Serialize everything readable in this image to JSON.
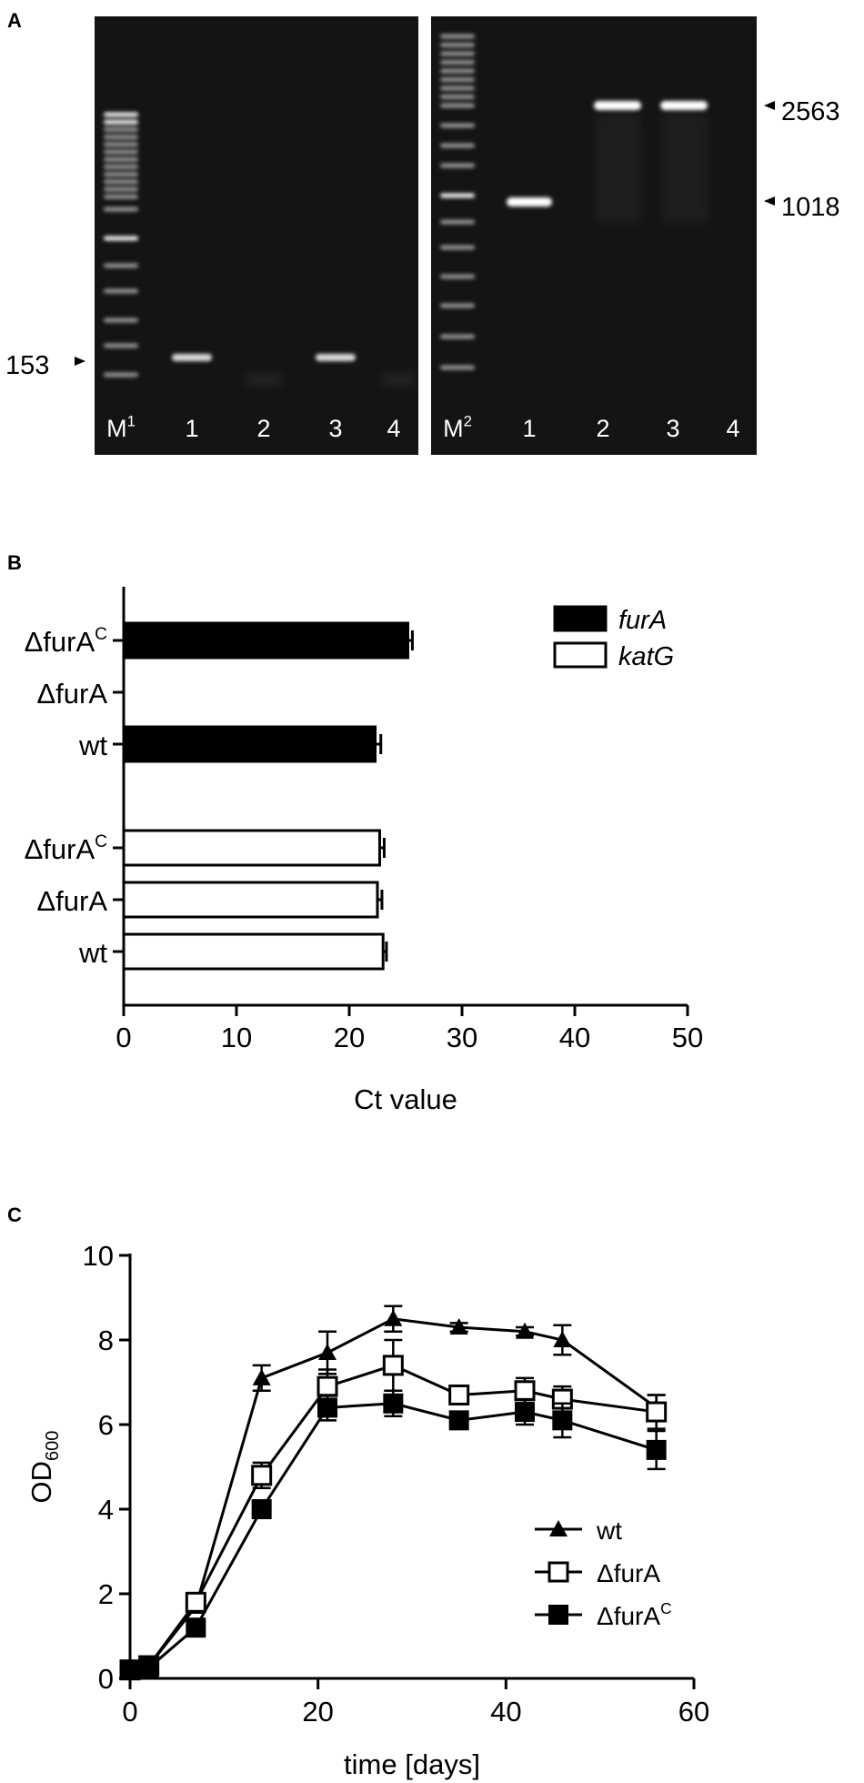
{
  "panel_a": {
    "label": "A",
    "left_lane_labels": [
      "M",
      "1",
      "2",
      "3",
      "4"
    ],
    "left_marker_sup": "1",
    "right_lane_labels": [
      "M",
      "1",
      "2",
      "3",
      "4"
    ],
    "right_marker_sup": "2",
    "size_left": "153",
    "size_right_top": "2563",
    "size_right_mid": "1018"
  },
  "chart_data": [
    {
      "panel": "B",
      "type": "bar",
      "orientation": "horizontal",
      "xlabel": "Ct value",
      "xlim": [
        0,
        50
      ],
      "xticks": [
        "0",
        "10",
        "20",
        "30",
        "40",
        "50"
      ],
      "legend": [
        "furA",
        "katG"
      ],
      "legend_position": "top-right",
      "groups": [
        {
          "series": "furA",
          "fill": "#000000",
          "bars": [
            {
              "label": "ΔfurA",
              "sup": "C",
              "value": 25.2,
              "error": 0.4
            },
            {
              "label": "ΔfurA",
              "sup": "",
              "value": 0,
              "error": 0
            },
            {
              "label": "wt",
              "sup": "",
              "value": 22.3,
              "error": 0.5
            }
          ]
        },
        {
          "series": "katG",
          "fill": "#ffffff",
          "bars": [
            {
              "label": "ΔfurA",
              "sup": "C",
              "value": 22.7,
              "error": 0.4
            },
            {
              "label": "ΔfurA",
              "sup": "",
              "value": 22.5,
              "error": 0.4
            },
            {
              "label": "wt",
              "sup": "",
              "value": 23.0,
              "error": 0.3
            }
          ]
        }
      ]
    },
    {
      "panel": "C",
      "type": "line",
      "xlabel": "time [days]",
      "ylabel": "OD",
      "ylabel_sub": "600",
      "xlim": [
        0,
        60
      ],
      "ylim": [
        0,
        10
      ],
      "xticks": [
        "0",
        "20",
        "40",
        "60"
      ],
      "yticks": [
        "0",
        "2",
        "4",
        "6",
        "8",
        "10"
      ],
      "legend_position": "bottom-right",
      "series": [
        {
          "name": "wt",
          "sup": "",
          "marker": "triangle",
          "x": [
            0,
            2,
            7,
            14,
            21,
            28,
            35,
            42,
            46,
            56
          ],
          "y": [
            0.2,
            0.3,
            1.7,
            7.1,
            7.7,
            8.5,
            8.3,
            8.2,
            8.0,
            6.4
          ],
          "err": [
            0.05,
            0.05,
            0.1,
            0.3,
            0.5,
            0.3,
            0.1,
            0.1,
            0.35,
            0.3
          ]
        },
        {
          "name": "ΔfurA",
          "sup": "",
          "marker": "open-square",
          "x": [
            0,
            2,
            7,
            14,
            21,
            28,
            35,
            42,
            46,
            56
          ],
          "y": [
            0.2,
            0.3,
            1.8,
            4.8,
            6.9,
            7.4,
            6.7,
            6.8,
            6.6,
            6.3
          ],
          "err": [
            0.05,
            0.05,
            0.1,
            0.3,
            0.4,
            0.6,
            0.2,
            0.3,
            0.3,
            0.4
          ]
        },
        {
          "name": "ΔfurA",
          "sup": "C",
          "marker": "filled-square",
          "x": [
            0,
            2,
            7,
            14,
            21,
            28,
            35,
            42,
            46,
            56
          ],
          "y": [
            0.2,
            0.25,
            1.2,
            4.0,
            6.4,
            6.5,
            6.1,
            6.3,
            6.1,
            5.4
          ],
          "err": [
            0.05,
            0.05,
            0.1,
            0.1,
            0.3,
            0.3,
            0.2,
            0.3,
            0.4,
            0.45
          ]
        }
      ]
    }
  ]
}
